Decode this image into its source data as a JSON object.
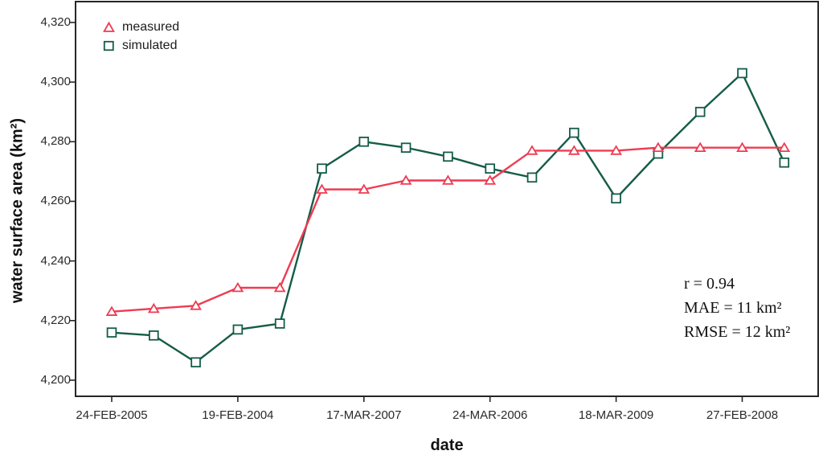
{
  "chart_data": {
    "type": "line",
    "title": "",
    "xlabel": "date",
    "ylabel": "water surface area (km²)",
    "grid": false,
    "legend_position": "top-left-inside",
    "ylim": [
      4194.6,
      4327.0
    ],
    "y_tick_values": [
      4200,
      4220,
      4240,
      4260,
      4280,
      4300,
      4320
    ],
    "y_tick_labels": [
      "4,200",
      "4,220",
      "4,240",
      "4,260",
      "4,280",
      "4,300",
      "4,320"
    ],
    "n_points": 17,
    "x_tick_indices": [
      0,
      3,
      6,
      9,
      12,
      15
    ],
    "x_tick_labels": [
      "24-FEB-2005",
      "19-FEB-2004",
      "17-MAR-2007",
      "24-MAR-2006",
      "18-MAR-2009",
      "27-FEB-2008"
    ],
    "series": [
      {
        "name": "measured",
        "marker": "triangle",
        "color": "#ef3b52",
        "values": [
          4223,
          4224,
          4225,
          4231,
          4231,
          4264,
          4264,
          4267,
          4267,
          4267,
          4277,
          4277,
          4277,
          4278,
          4278,
          4278,
          4278
        ]
      },
      {
        "name": "simulated",
        "marker": "square",
        "color": "#155c48",
        "values": [
          4216,
          4215,
          4206,
          4217,
          4219,
          4271,
          4280,
          4278,
          4275,
          4271,
          4268,
          4283,
          4261,
          4276,
          4290,
          4303,
          4273
        ]
      }
    ],
    "stats": {
      "r": "0.94",
      "MAE": "11 km²",
      "RMSE": "12 km²"
    },
    "stats_lines": [
      "r = 0.94",
      "MAE = 11 km²",
      "RMSE = 12 km²"
    ]
  },
  "style": {
    "frame_color": "#262626",
    "marker_fill": "#ffffff",
    "text_color": "#111111"
  }
}
